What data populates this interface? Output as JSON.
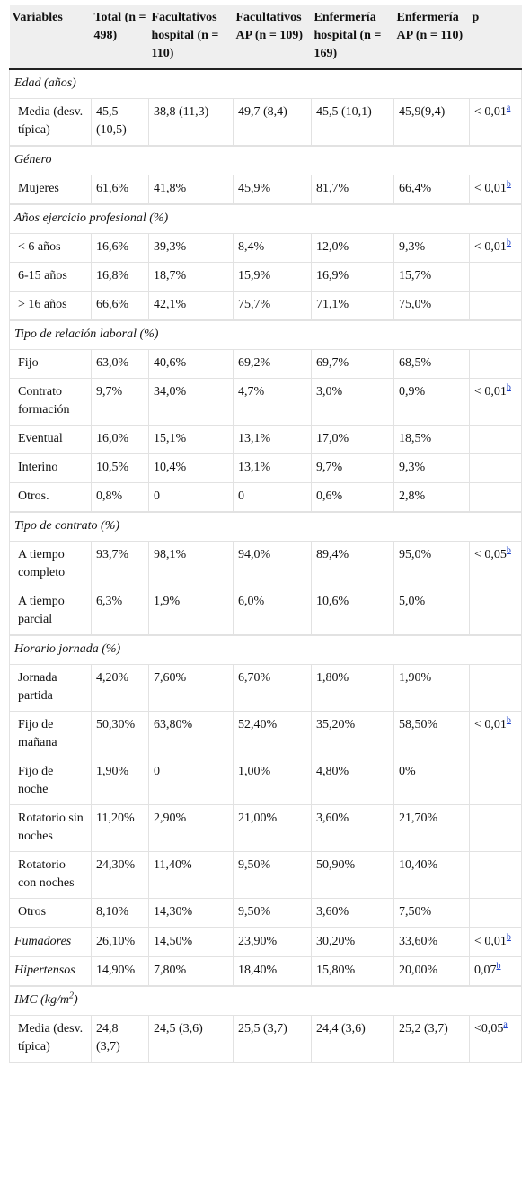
{
  "table": {
    "header": [
      "Variables",
      "Total (n = 498)",
      "Facultativos hospital (n = 110)",
      "Facultativos AP (n = 109)",
      "Enfermería hospital (n = 169)",
      "Enfermería AP (n = 110)",
      "p"
    ],
    "sections": [
      {
        "title": "Edad (años)",
        "rows": [
          [
            "Media (desv. típica)",
            "45,5 (10,5)",
            "38,8 (11,3)",
            "49,7 (8,4)",
            "45,5 (10,1)",
            "45,9(9,4)",
            {
              "text": "< 0,01",
              "sup": "a"
            }
          ]
        ]
      },
      {
        "title": "Género",
        "rows": [
          [
            "Mujeres",
            "61,6%",
            "41,8%",
            "45,9%",
            "81,7%",
            "66,4%",
            {
              "text": "< 0,01",
              "sup": "b"
            }
          ]
        ]
      },
      {
        "title": "Años ejercicio profesional (%)",
        "rows": [
          [
            "< 6 años",
            "16,6%",
            "39,3%",
            "8,4%",
            "12,0%",
            "9,3%",
            {
              "text": "< 0,01",
              "sup": "b"
            }
          ],
          [
            "6-15 años",
            "16,8%",
            "18,7%",
            "15,9%",
            "16,9%",
            "15,7%",
            null
          ],
          [
            "> 16 años",
            "66,6%",
            "42,1%",
            "75,7%",
            "71,1%",
            "75,0%",
            null
          ]
        ]
      },
      {
        "title": "Tipo de relación laboral (%)",
        "rows": [
          [
            "Fijo",
            "63,0%",
            "40,6%",
            "69,2%",
            "69,7%",
            "68,5%",
            null
          ],
          [
            "Contrato formación",
            "9,7%",
            "34,0%",
            "4,7%",
            "3,0%",
            "0,9%",
            {
              "text": "< 0,01",
              "sup": "b"
            }
          ],
          [
            "Eventual",
            "16,0%",
            "15,1%",
            "13,1%",
            "17,0%",
            "18,5%",
            null
          ],
          [
            "Interino",
            "10,5%",
            "10,4%",
            "13,1%",
            "9,7%",
            "9,3%",
            null
          ],
          [
            "Otros.",
            "0,8%",
            "0",
            "0",
            "0,6%",
            "2,8%",
            null
          ]
        ]
      },
      {
        "title": "Tipo de contrato (%)",
        "rows": [
          [
            "A tiempo completo",
            "93,7%",
            "98,1%",
            "94,0%",
            "89,4%",
            "95,0%",
            {
              "text": "< 0,05",
              "sup": "b"
            }
          ],
          [
            "A tiempo parcial",
            "6,3%",
            "1,9%",
            "6,0%",
            "10,6%",
            "5,0%",
            null
          ]
        ]
      },
      {
        "title": "Horario jornada (%)",
        "rows": [
          [
            "Jornada partida",
            "4,20%",
            "7,60%",
            "6,70%",
            "1,80%",
            "1,90%",
            null
          ],
          [
            "Fijo de mañana",
            "50,30%",
            "63,80%",
            "52,40%",
            "35,20%",
            "58,50%",
            {
              "text": "< 0,01",
              "sup": "b"
            }
          ],
          [
            "Fijo de noche",
            "1,90%",
            "0",
            "1,00%",
            "4,80%",
            "0%",
            null
          ],
          [
            "Rotatorio sin noches",
            "11,20%",
            "2,90%",
            "21,00%",
            "3,60%",
            "21,70%",
            null
          ],
          [
            "Rotatorio con noches",
            "24,30%",
            "11,40%",
            "9,50%",
            "50,90%",
            "10,40%",
            null
          ],
          [
            "Otros",
            "8,10%",
            "14,30%",
            "9,50%",
            "3,60%",
            "7,50%",
            null
          ]
        ]
      },
      {
        "rows": [
          [
            "Fumadores",
            "26,10%",
            "14,50%",
            "23,90%",
            "30,20%",
            "33,60%",
            {
              "text": "< 0,01",
              "sup": "b"
            }
          ],
          [
            "Hipertensos",
            "14,90%",
            "7,80%",
            "18,40%",
            "15,80%",
            "20,00%",
            {
              "text": "0,07",
              "sup": "b"
            }
          ]
        ]
      },
      {
        "title": {
          "text": "IMC (kg/m",
          "sup": "2",
          "tail": ")"
        },
        "rows": [
          [
            "Media (desv. típica)",
            "24,8 (3,7)",
            "24,5 (3,6)",
            "25,5 (3,7)",
            "24,4 (3,6)",
            "25,2 (3,7)",
            {
              "text": "<0,05",
              "sup": "a"
            }
          ]
        ]
      }
    ]
  }
}
